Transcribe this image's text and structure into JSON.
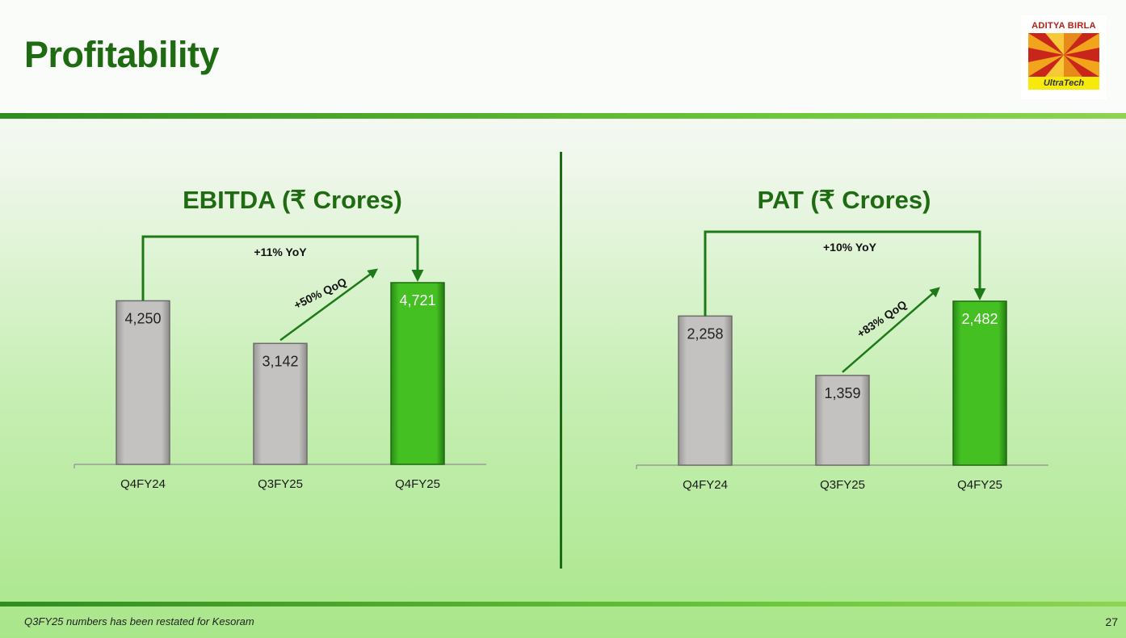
{
  "page": {
    "title": "Profitability",
    "logo_brand": "ADITYA BIRLA",
    "logo_sub": "UltraTech",
    "footnote": "Q3FY25 numbers has been restated for Kesoram",
    "page_number": "27"
  },
  "colors": {
    "title_green": "#1e6b12",
    "bar_gray": "#bdbaba",
    "bar_green": "#3cb521",
    "arrow_green": "#1e7a17"
  },
  "chart_data": [
    {
      "type": "bar",
      "title": "EBITDA (₹ Crores)",
      "categories": [
        "Q4FY24",
        "Q3FY25",
        "Q4FY25"
      ],
      "values": [
        4250,
        3142,
        4721
      ],
      "labels": [
        "4,250",
        "3,142",
        "4,721"
      ],
      "highlight": [
        false,
        false,
        true
      ],
      "ylim": [
        0,
        4900
      ],
      "annotations": {
        "yoy": "+11% YoY",
        "qoq": "+50% QoQ"
      }
    },
    {
      "type": "bar",
      "title": "PAT (₹ Crores)",
      "categories": [
        "Q4FY24",
        "Q3FY25",
        "Q4FY25"
      ],
      "values": [
        2258,
        1359,
        2482
      ],
      "labels": [
        "2,258",
        "1,359",
        "2,482"
      ],
      "highlight": [
        false,
        false,
        true
      ],
      "ylim": [
        0,
        2700
      ],
      "annotations": {
        "yoy": "+10% YoY",
        "qoq": "+83% QoQ"
      }
    }
  ]
}
